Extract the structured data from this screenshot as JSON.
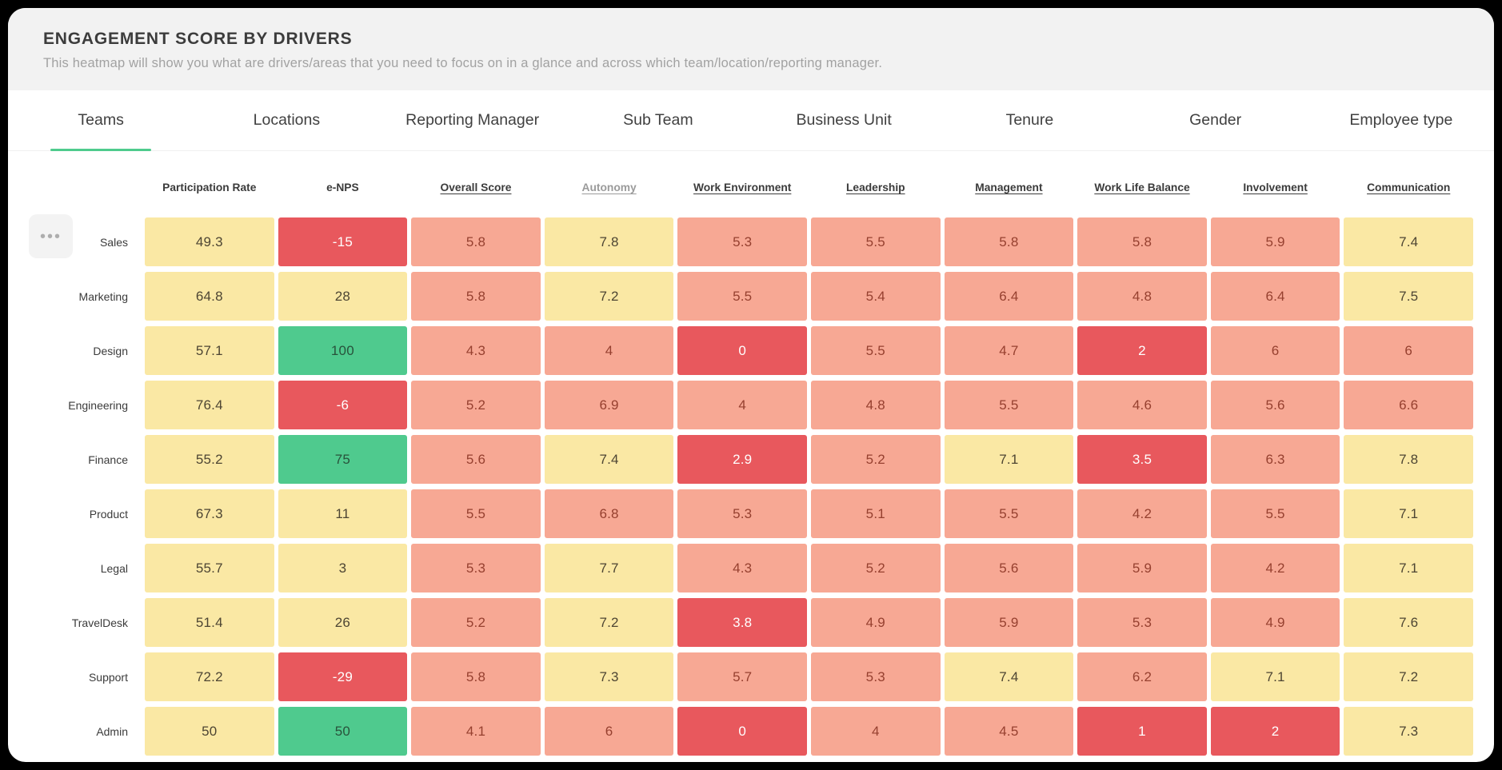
{
  "header": {
    "title": "ENGAGEMENT SCORE BY DRIVERS",
    "subtitle": "This heatmap will show you what are drivers/areas that you need to focus on in a glance and across which team/location/reporting manager."
  },
  "tabs": [
    {
      "label": "Teams",
      "active": true
    },
    {
      "label": "Locations",
      "active": false
    },
    {
      "label": "Reporting Manager",
      "active": false
    },
    {
      "label": "Sub Team",
      "active": false
    },
    {
      "label": "Business Unit",
      "active": false
    },
    {
      "label": "Tenure",
      "active": false
    },
    {
      "label": "Gender",
      "active": false
    },
    {
      "label": "Employee type",
      "active": false
    }
  ],
  "more_button": {
    "icon": "•••"
  },
  "columns": [
    {
      "label": "Participation Rate",
      "underlined": false,
      "muted": false
    },
    {
      "label": "e-NPS",
      "underlined": false,
      "muted": false
    },
    {
      "label": "Overall Score",
      "underlined": true,
      "muted": false
    },
    {
      "label": "Autonomy",
      "underlined": true,
      "muted": true
    },
    {
      "label": "Work Environment",
      "underlined": true,
      "muted": false
    },
    {
      "label": "Leadership",
      "underlined": true,
      "muted": false
    },
    {
      "label": "Management",
      "underlined": true,
      "muted": false
    },
    {
      "label": "Work Life Balance",
      "underlined": true,
      "muted": false
    },
    {
      "label": "Involvement",
      "underlined": true,
      "muted": false
    },
    {
      "label": "Communication",
      "underlined": true,
      "muted": false
    }
  ],
  "chart_data": {
    "type": "heatmap",
    "title": "ENGAGEMENT SCORE BY DRIVERS",
    "columns": [
      "Participation Rate",
      "e-NPS",
      "Overall Score",
      "Autonomy",
      "Work Environment",
      "Leadership",
      "Management",
      "Work Life Balance",
      "Involvement",
      "Communication"
    ],
    "rows": [
      {
        "name": "Sales",
        "values": [
          "49.3",
          "-15",
          "5.8",
          "7.8",
          "5.3",
          "5.5",
          "5.8",
          "5.8",
          "5.9",
          "7.4"
        ],
        "levels": [
          "yellow",
          "red",
          "salmon",
          "yellow",
          "salmon",
          "salmon",
          "salmon",
          "salmon",
          "salmon",
          "yellow"
        ]
      },
      {
        "name": "Marketing",
        "values": [
          "64.8",
          "28",
          "5.8",
          "7.2",
          "5.5",
          "5.4",
          "6.4",
          "4.8",
          "6.4",
          "7.5"
        ],
        "levels": [
          "yellow",
          "yellow",
          "salmon",
          "yellow",
          "salmon",
          "salmon",
          "salmon",
          "salmon",
          "salmon",
          "yellow"
        ]
      },
      {
        "name": "Design",
        "values": [
          "57.1",
          "100",
          "4.3",
          "4",
          "0",
          "5.5",
          "4.7",
          "2",
          "6",
          "6"
        ],
        "levels": [
          "yellow",
          "green",
          "salmon",
          "salmon",
          "red",
          "salmon",
          "salmon",
          "red",
          "salmon",
          "salmon"
        ]
      },
      {
        "name": "Engineering",
        "values": [
          "76.4",
          "-6",
          "5.2",
          "6.9",
          "4",
          "4.8",
          "5.5",
          "4.6",
          "5.6",
          "6.6"
        ],
        "levels": [
          "yellow",
          "red",
          "salmon",
          "salmon",
          "salmon",
          "salmon",
          "salmon",
          "salmon",
          "salmon",
          "salmon"
        ]
      },
      {
        "name": "Finance",
        "values": [
          "55.2",
          "75",
          "5.6",
          "7.4",
          "2.9",
          "5.2",
          "7.1",
          "3.5",
          "6.3",
          "7.8"
        ],
        "levels": [
          "yellow",
          "green",
          "salmon",
          "yellow",
          "red",
          "salmon",
          "yellow",
          "red",
          "salmon",
          "yellow"
        ]
      },
      {
        "name": "Product",
        "values": [
          "67.3",
          "11",
          "5.5",
          "6.8",
          "5.3",
          "5.1",
          "5.5",
          "4.2",
          "5.5",
          "7.1"
        ],
        "levels": [
          "yellow",
          "yellow",
          "salmon",
          "salmon",
          "salmon",
          "salmon",
          "salmon",
          "salmon",
          "salmon",
          "yellow"
        ]
      },
      {
        "name": "Legal",
        "values": [
          "55.7",
          "3",
          "5.3",
          "7.7",
          "4.3",
          "5.2",
          "5.6",
          "5.9",
          "4.2",
          "7.1"
        ],
        "levels": [
          "yellow",
          "yellow",
          "salmon",
          "yellow",
          "salmon",
          "salmon",
          "salmon",
          "salmon",
          "salmon",
          "yellow"
        ]
      },
      {
        "name": "TravelDesk",
        "values": [
          "51.4",
          "26",
          "5.2",
          "7.2",
          "3.8",
          "4.9",
          "5.9",
          "5.3",
          "4.9",
          "7.6"
        ],
        "levels": [
          "yellow",
          "yellow",
          "salmon",
          "yellow",
          "red",
          "salmon",
          "salmon",
          "salmon",
          "salmon",
          "yellow"
        ]
      },
      {
        "name": "Support",
        "values": [
          "72.2",
          "-29",
          "5.8",
          "7.3",
          "5.7",
          "5.3",
          "7.4",
          "6.2",
          "7.1",
          "7.2"
        ],
        "levels": [
          "yellow",
          "red",
          "salmon",
          "yellow",
          "salmon",
          "salmon",
          "yellow",
          "salmon",
          "yellow",
          "yellow"
        ]
      },
      {
        "name": "Admin",
        "values": [
          "50",
          "50",
          "4.1",
          "6",
          "0",
          "4",
          "4.5",
          "1",
          "2",
          "7.3"
        ],
        "levels": [
          "yellow",
          "green",
          "salmon",
          "salmon",
          "red",
          "salmon",
          "salmon",
          "red",
          "red",
          "yellow"
        ]
      }
    ]
  },
  "colors": {
    "accent_green": "#4ECB8D",
    "header_bar_bg": "#F2F2F2",
    "yellow": {
      "bg": "#FAE8A4",
      "text": "#4D4533"
    },
    "salmon": {
      "bg": "#F7A894",
      "text": "#96402F"
    },
    "red": {
      "bg": "#E8585D",
      "text": "#FFFFFF"
    },
    "green": {
      "bg": "#4FCA8E",
      "text": "#28523B"
    }
  }
}
